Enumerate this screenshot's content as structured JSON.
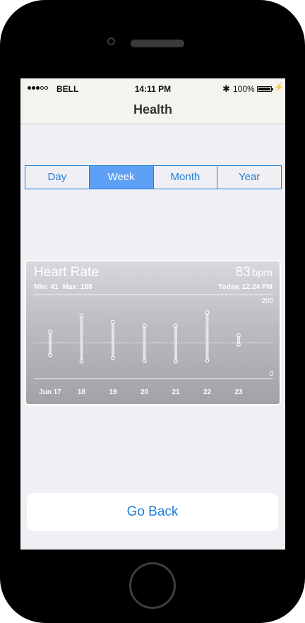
{
  "status_bar": {
    "carrier": "BELL",
    "time": "14:11 PM",
    "battery": "100%",
    "bluetooth_glyph": "✱",
    "charging_glyph": "⚡"
  },
  "nav": {
    "title": "Health"
  },
  "segments": [
    {
      "label": "Day",
      "selected": false
    },
    {
      "label": "Week",
      "selected": true
    },
    {
      "label": "Month",
      "selected": false
    },
    {
      "label": "Year",
      "selected": false
    }
  ],
  "card": {
    "title": "Heart Rate",
    "min_label": "Min: 41",
    "max_label": "Max: 158",
    "value": "83",
    "unit": "bpm",
    "timestamp": "Today, 12:24 PM"
  },
  "chart_data": {
    "type": "range",
    "categories": [
      "Jun 17",
      "18",
      "19",
      "20",
      "21",
      "22",
      "23"
    ],
    "series": [
      {
        "low": [
          56,
          41,
          49,
          42,
          41,
          43,
          81
        ],
        "high": [
          112,
          150,
          135,
          126,
          126,
          158,
          103
        ]
      }
    ],
    "ylim": [
      0,
      200
    ],
    "ytick_labels": [
      "200",
      "0"
    ],
    "average_line": 85,
    "colors": {
      "bar": "#e8e8ea",
      "grid": "#ffffff"
    }
  },
  "footer": {
    "button_label": "Go Back"
  },
  "colors": {
    "accent": "#1e7ed6",
    "segment_selected": "#5da0f5"
  }
}
